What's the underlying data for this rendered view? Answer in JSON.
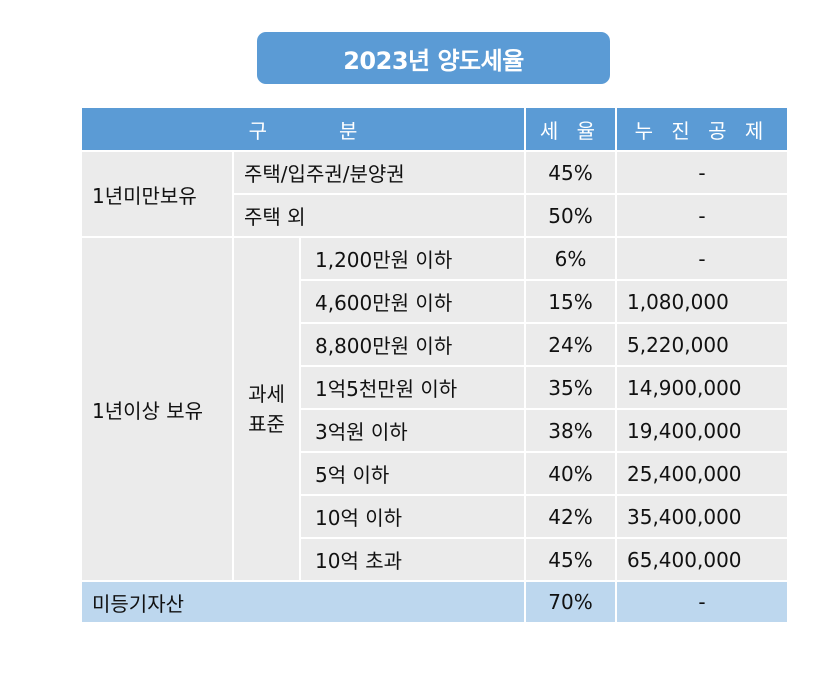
{
  "title": "2023년 양도세율",
  "header": {
    "col1_char1": "구",
    "col1_char2": "분",
    "col2": "세 율",
    "col3": "누 진 공 제"
  },
  "groups": {
    "under_one_year": "1년미만보유",
    "over_one_year": "1년이상 보유",
    "tax_base_line1": "과세",
    "tax_base_line2": "표준",
    "unregistered": "미등기자산"
  },
  "rows": [
    {
      "item": "주택/입주권/분양권",
      "rate": "45%",
      "deduction": "-"
    },
    {
      "item": "주택 외",
      "rate": "50%",
      "deduction": "-"
    },
    {
      "item": "1,200만원 이하",
      "rate": "6%",
      "deduction": "-"
    },
    {
      "item": "4,600만원 이하",
      "rate": "15%",
      "deduction": "1,080,000"
    },
    {
      "item": "8,800만원 이하",
      "rate": "24%",
      "deduction": "5,220,000"
    },
    {
      "item": "1억5천만원 이하",
      "rate": "35%",
      "deduction": "14,900,000"
    },
    {
      "item": "3억원 이하",
      "rate": "38%",
      "deduction": "19,400,000"
    },
    {
      "item": "5억 이하",
      "rate": "40%",
      "deduction": "25,400,000"
    },
    {
      "item": "10억 이하",
      "rate": "42%",
      "deduction": "35,400,000"
    },
    {
      "item": "10억 초과",
      "rate": "45%",
      "deduction": "65,400,000"
    },
    {
      "item": "",
      "rate": "70%",
      "deduction": "-"
    }
  ]
}
